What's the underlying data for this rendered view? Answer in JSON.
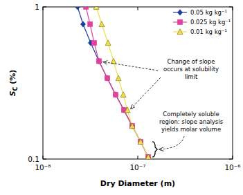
{
  "chart_data": {
    "type": "line",
    "xlabel": "Dry Diameter (m)",
    "ylabel": "SC (%)",
    "log": true,
    "grid": false,
    "legend": "upper right",
    "xlim": [
      1e-08,
      1e-06
    ],
    "ylim": [
      0.1,
      1
    ],
    "xticks": [
      {
        "value": 1e-08,
        "label": "10⁻⁸"
      },
      {
        "value": 1e-07,
        "label": "10⁻⁷"
      },
      {
        "value": 1e-06,
        "label": "10⁻⁶"
      }
    ],
    "yticks": [
      0.1,
      1
    ],
    "series": [
      {
        "name": "0.05 kg kg⁻¹",
        "color": "#1c3f9e",
        "marker": "diamond",
        "x": [
          2.32e-08,
          2.65e-08,
          3.19e-08,
          3.9e-08,
          4.77e-08,
          5.84e-08,
          7.14e-08,
          8.74e-08,
          1.07e-07,
          1.29e-07
        ],
        "values": [
          1.0,
          0.77,
          0.58,
          0.44,
          0.34,
          0.265,
          0.21,
          0.165,
          0.13,
          0.103
        ]
      },
      {
        "name": "0.025 kg kg⁻¹",
        "color": "#e2409c",
        "marker": "square",
        "x": [
          2.84e-08,
          3.14e-08,
          3.47e-08,
          3.9e-08,
          4.77e-08,
          5.84e-08,
          7.14e-08,
          8.74e-08,
          1.07e-07,
          1.29e-07
        ],
        "values": [
          1.0,
          0.77,
          0.58,
          0.44,
          0.34,
          0.265,
          0.21,
          0.165,
          0.13,
          0.103
        ]
      },
      {
        "name": "0.01 kg kg⁻¹",
        "color": "#eee04a",
        "marker": "triangle",
        "x": [
          3.65e-08,
          4.17e-08,
          4.86e-08,
          5.55e-08,
          6.25e-08,
          7.03e-08,
          7.78e-08,
          8.74e-08,
          1.07e-07,
          1.29e-07
        ],
        "values": [
          1.0,
          0.77,
          0.58,
          0.44,
          0.34,
          0.265,
          0.21,
          0.165,
          0.13,
          0.103
        ]
      }
    ],
    "annotations": [
      {
        "text": [
          "Change of slope",
          "occurs at solubility",
          "limit"
        ]
      },
      {
        "text": [
          "Completely soluble",
          "region: slope analysis",
          "yields molar volume"
        ]
      }
    ]
  }
}
